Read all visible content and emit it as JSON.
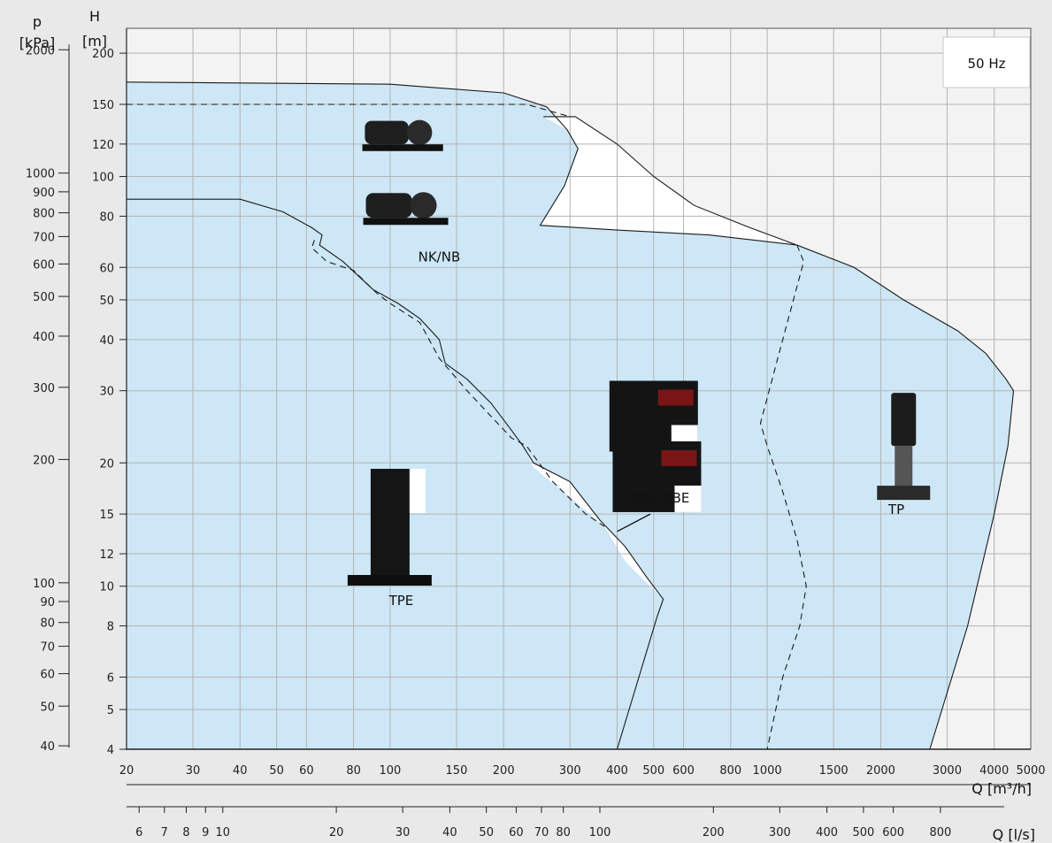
{
  "chart_data": {
    "type": "area",
    "frequency_label": "50 Hz",
    "x_axis": {
      "label": "Q [m³/h]",
      "scale": "log",
      "range": [
        20,
        5000
      ],
      "ticks": [
        20,
        30,
        40,
        50,
        60,
        80,
        100,
        150,
        200,
        300,
        400,
        500,
        600,
        800,
        1000,
        1500,
        2000,
        3000,
        4000,
        5000
      ],
      "tick_labels": [
        "20",
        "30",
        "40",
        "50",
        "60",
        "80",
        "100",
        "150",
        "200",
        "300",
        "400",
        "500",
        "600",
        "800",
        "1000",
        "1500",
        "2000",
        "3000",
        "4000",
        "5000"
      ]
    },
    "x2_axis": {
      "label": "Q [l/s]",
      "scale": "log",
      "ticks": [
        6,
        7,
        8,
        9,
        10,
        20,
        30,
        40,
        50,
        60,
        70,
        80,
        100,
        200,
        300,
        400,
        500,
        600,
        800
      ],
      "tick_labels": [
        "6",
        "7",
        "8",
        "9",
        "10",
        "20",
        "30",
        "40",
        "50",
        "60",
        "70",
        "80",
        "100",
        "200",
        "300",
        "400",
        "500",
        "600",
        "800"
      ]
    },
    "y_axis": {
      "label_top": "H",
      "label_unit": "[m]",
      "scale": "log",
      "range": [
        4,
        230
      ],
      "ticks": [
        4,
        5,
        6,
        8,
        10,
        12,
        15,
        20,
        30,
        40,
        50,
        60,
        80,
        100,
        120,
        150,
        200
      ],
      "tick_labels": [
        "4",
        "5",
        "6",
        "8",
        "10",
        "12",
        "15",
        "20",
        "30",
        "40",
        "50",
        "60",
        "80",
        "100",
        "120",
        "150",
        "200"
      ]
    },
    "y2_axis": {
      "label_top": "p",
      "label_unit": "[kPa]",
      "scale": "log",
      "ticks": [
        40,
        50,
        60,
        70,
        80,
        90,
        100,
        200,
        300,
        400,
        500,
        600,
        700,
        800,
        900,
        1000,
        2000
      ],
      "tick_labels": [
        "40",
        "50",
        "60",
        "70",
        "80",
        "90",
        "100",
        "200",
        "300",
        "400",
        "500",
        "600",
        "700",
        "800",
        "900",
        "1000",
        "2000"
      ]
    },
    "grid": true,
    "legend_position": "top-right",
    "regions": [
      {
        "name": "NK/NB",
        "boundary": [
          [
            20,
            4
          ],
          [
            20,
            170
          ],
          [
            100,
            168
          ],
          [
            200,
            160
          ],
          [
            260,
            148
          ],
          [
            295,
            130
          ],
          [
            315,
            117
          ],
          [
            290,
            95
          ],
          [
            250,
            76
          ],
          [
            400,
            74
          ],
          [
            700,
            72
          ],
          [
            1200,
            68
          ],
          [
            1700,
            60
          ],
          [
            2300,
            50
          ],
          [
            3200,
            42
          ],
          [
            3800,
            37
          ],
          [
            4300,
            32
          ],
          [
            4500,
            30
          ],
          [
            4350,
            22
          ],
          [
            4000,
            15
          ],
          [
            3400,
            8
          ],
          [
            2700,
            4
          ]
        ]
      },
      {
        "name": "NKE/NBE",
        "boundary": [
          [
            255,
            140
          ],
          [
            310,
            140
          ],
          [
            400,
            120
          ],
          [
            500,
            100
          ],
          [
            640,
            85
          ],
          [
            900,
            75
          ],
          [
            1200,
            68
          ],
          [
            700,
            72
          ],
          [
            400,
            74
          ],
          [
            250,
            76
          ],
          [
            290,
            95
          ],
          [
            315,
            117
          ],
          [
            295,
            130
          ]
        ]
      },
      {
        "name": "TPE",
        "boundary": [
          [
            20,
            88
          ],
          [
            40,
            88
          ],
          [
            52,
            82
          ],
          [
            62,
            75
          ],
          [
            66,
            70
          ],
          [
            75,
            62
          ],
          [
            90,
            52
          ],
          [
            105,
            49
          ],
          [
            120,
            44
          ],
          [
            150,
            34
          ],
          [
            185,
            28
          ],
          [
            220,
            23
          ],
          [
            240,
            20
          ],
          [
            300,
            18
          ],
          [
            360,
            14.5
          ],
          [
            420,
            12.5
          ],
          [
            480,
            10.5
          ],
          [
            530,
            9.3
          ],
          [
            510,
            8.4
          ],
          [
            400,
            4
          ]
        ]
      }
    ],
    "lines": [
      {
        "name": "TPE-solid",
        "style": "solid",
        "points": [
          [
            20,
            88
          ],
          [
            40,
            88
          ],
          [
            52,
            82
          ],
          [
            62,
            75
          ],
          [
            66,
            72
          ],
          [
            65,
            68
          ],
          [
            75,
            62
          ],
          [
            90,
            53
          ],
          [
            105,
            49
          ],
          [
            120,
            45
          ],
          [
            135,
            40
          ],
          [
            140,
            35
          ],
          [
            160,
            32
          ],
          [
            185,
            28
          ],
          [
            210,
            24
          ],
          [
            225,
            22
          ],
          [
            240,
            20
          ],
          [
            300,
            18
          ],
          [
            360,
            14.5
          ],
          [
            420,
            12.5
          ],
          [
            480,
            10.5
          ],
          [
            530,
            9.3
          ],
          [
            510,
            8.4
          ],
          [
            400,
            4
          ]
        ]
      },
      {
        "name": "TPE-dashed",
        "style": "dashed",
        "points": [
          [
            63,
            70
          ],
          [
            62,
            67
          ],
          [
            68,
            62
          ],
          [
            80,
            59
          ],
          [
            92,
            52
          ],
          [
            100,
            49
          ],
          [
            120,
            44
          ],
          [
            135,
            36
          ],
          [
            160,
            30
          ],
          [
            185,
            26
          ],
          [
            210,
            23
          ],
          [
            230,
            22
          ],
          [
            270,
            18
          ],
          [
            330,
            15
          ],
          [
            370,
            14
          ]
        ]
      },
      {
        "name": "NK-dashed",
        "style": "dashed",
        "points": [
          [
            20,
            150
          ],
          [
            230,
            150
          ],
          [
            300,
            140
          ]
        ]
      },
      {
        "name": "TP-dashed",
        "style": "dashed",
        "points": [
          [
            1200,
            68
          ],
          [
            1250,
            62
          ],
          [
            1100,
            40
          ],
          [
            960,
            25
          ],
          [
            1000,
            22
          ],
          [
            1100,
            17
          ],
          [
            1200,
            13
          ],
          [
            1270,
            10
          ],
          [
            1220,
            8
          ],
          [
            1100,
            6
          ],
          [
            1000,
            4
          ]
        ]
      }
    ],
    "labels": [
      {
        "text": "NK/NB",
        "x": 135,
        "y": 62
      },
      {
        "text": "NKE/NBE",
        "x": 520,
        "y": 16
      },
      {
        "text": "TPE",
        "x": 107,
        "y": 9
      },
      {
        "text": "TP",
        "x": 2200,
        "y": 15
      }
    ],
    "colors": {
      "region_fill": "#cde7f7",
      "white_fill": "#ffffff",
      "grid": "#b3b3b3",
      "curve": "#1a1a1a",
      "background": "#e9e9e9"
    }
  }
}
